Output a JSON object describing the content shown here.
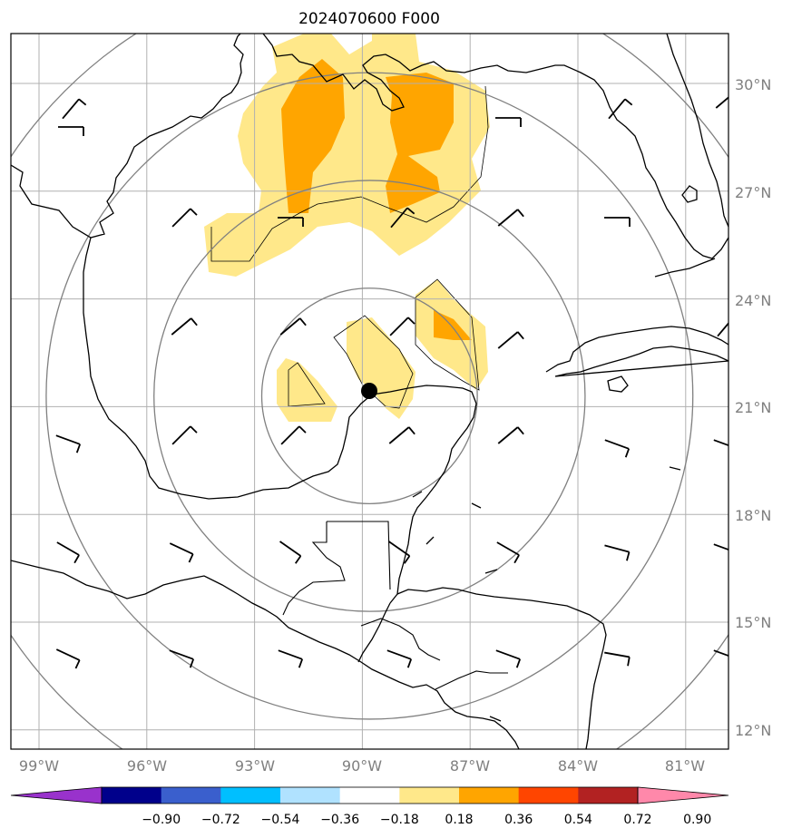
{
  "title": "2024070600 F000",
  "map": {
    "lat_labels": [
      "30°N",
      "27°N",
      "24°N",
      "21°N",
      "18°N",
      "15°N",
      "12°N"
    ],
    "lat_values": [
      30,
      27,
      24,
      21,
      18,
      15,
      12
    ],
    "lon_labels": [
      "99°W",
      "96°W",
      "93°W",
      "90°W",
      "87°W",
      "84°W",
      "81°W"
    ],
    "lon_values": [
      -99,
      -96,
      -93,
      -90,
      -87,
      -84,
      -81
    ],
    "lat_range": [
      11.3,
      31.3
    ],
    "lon_range": [
      -99.8,
      -79.8
    ],
    "center": {
      "lat": 21.4,
      "lon": -89.8,
      "marker": "black-dot"
    },
    "range_rings_deg": [
      3,
      6,
      9,
      12
    ]
  },
  "colorbar": {
    "levels": [
      "−0.90",
      "−0.72",
      "−0.54",
      "−0.36",
      "−0.18",
      "0.18",
      "0.36",
      "0.54",
      "0.72",
      "0.90"
    ],
    "colors": [
      "#9932cc",
      "#00008b",
      "#3a5fcd",
      "#00bfff",
      "#b0e2ff",
      "#ffffff",
      "#ffe88a",
      "#ffa500",
      "#ff4500",
      "#b22222",
      "#ff88aa"
    ],
    "extend": "both"
  },
  "colors": {
    "coast": "#000000",
    "grid": "#b0b0b0",
    "ring": "#808080",
    "fill_low": "#ffe88a",
    "fill_high": "#ffa500"
  }
}
